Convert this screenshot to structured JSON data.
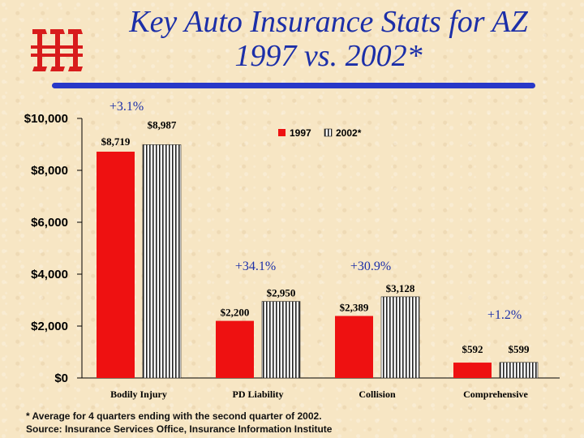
{
  "title_line1": "Key Auto Insurance Stats for AZ",
  "title_line2": "1997 vs. 2002*",
  "logo": {
    "icon": "iii-logo-icon",
    "text": "iii",
    "color": "#d81c1c"
  },
  "colors": {
    "title": "#1c2fa8",
    "rule": "#2838c8",
    "bar1997": "#ee1111",
    "bar2002_stripe": "#222222",
    "background": "#f7e6c4"
  },
  "footnote": {
    "line1": "* Average for 4 quarters ending with the second quarter of 2002.",
    "line2": "Source: Insurance Services Office, Insurance Information Institute"
  },
  "chart_data": {
    "type": "bar",
    "title": "Key Auto Insurance Stats for AZ 1997 vs. 2002*",
    "categories": [
      "Bodily Injury",
      "PD Liability",
      "Collision",
      "Comprehensive"
    ],
    "series": [
      {
        "name": "1997",
        "values": [
          8719,
          2200,
          2389,
          592
        ],
        "labels": [
          "$8,719",
          "$2,200",
          "$2,389",
          "$592"
        ]
      },
      {
        "name": "2002*",
        "values": [
          8987,
          2950,
          3128,
          599
        ],
        "labels": [
          "$8,987",
          "$2,950",
          "$3,128",
          "$599"
        ]
      }
    ],
    "changes": [
      "+3.1%",
      "+34.1%",
      "+30.9%",
      "+1.2%"
    ],
    "yticks": [
      0,
      2000,
      4000,
      6000,
      8000,
      10000
    ],
    "ytick_labels": [
      "$0",
      "$2,000",
      "$4,000",
      "$6,000",
      "$8,000",
      "$10,000"
    ],
    "ylim": [
      0,
      10000
    ],
    "legend": [
      "1997",
      "2002*"
    ],
    "legend_position": "top-right",
    "grid": false
  }
}
